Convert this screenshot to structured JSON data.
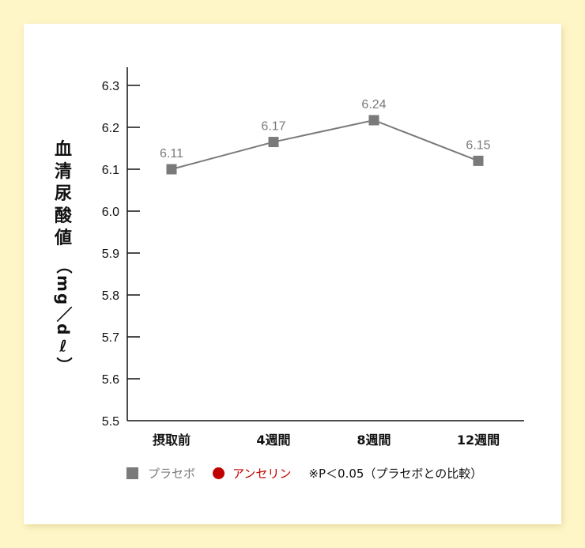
{
  "chart_data": {
    "type": "line",
    "title": "",
    "xlabel": "",
    "ylabel": "血清尿酸値（mg/dℓ）",
    "ylabel_chars": [
      "血",
      "清",
      "尿",
      "酸",
      "値"
    ],
    "ylabel_unit": "（mg／dℓ）",
    "ylim": [
      5.5,
      6.3
    ],
    "yticks": [
      "6.3",
      "6.2",
      "6.1",
      "6.0",
      "5.9",
      "5.8",
      "5.7",
      "5.6",
      "5.5"
    ],
    "categories": [
      "摂取前",
      "4週間",
      "8週間",
      "12週間"
    ],
    "series": [
      {
        "name": "プラセボ",
        "color": "#7a7a7a",
        "marker": "square",
        "values": [
          6.11,
          6.17,
          6.24,
          6.15
        ],
        "labels": [
          "6.11",
          "6.17",
          "6.24",
          "6.15"
        ]
      }
    ],
    "grid": false,
    "legend_position": "bottom"
  },
  "legend": {
    "placebo": "プラセボ",
    "placebo_color": "#7a7a7a",
    "anserine": "アンセリン",
    "anserine_color": "#c00000",
    "note": "※P＜0.05（プラセボとの比較）"
  },
  "colors": {
    "background": "#fff6c8",
    "card": "#ffffff",
    "axis": "#111111"
  }
}
